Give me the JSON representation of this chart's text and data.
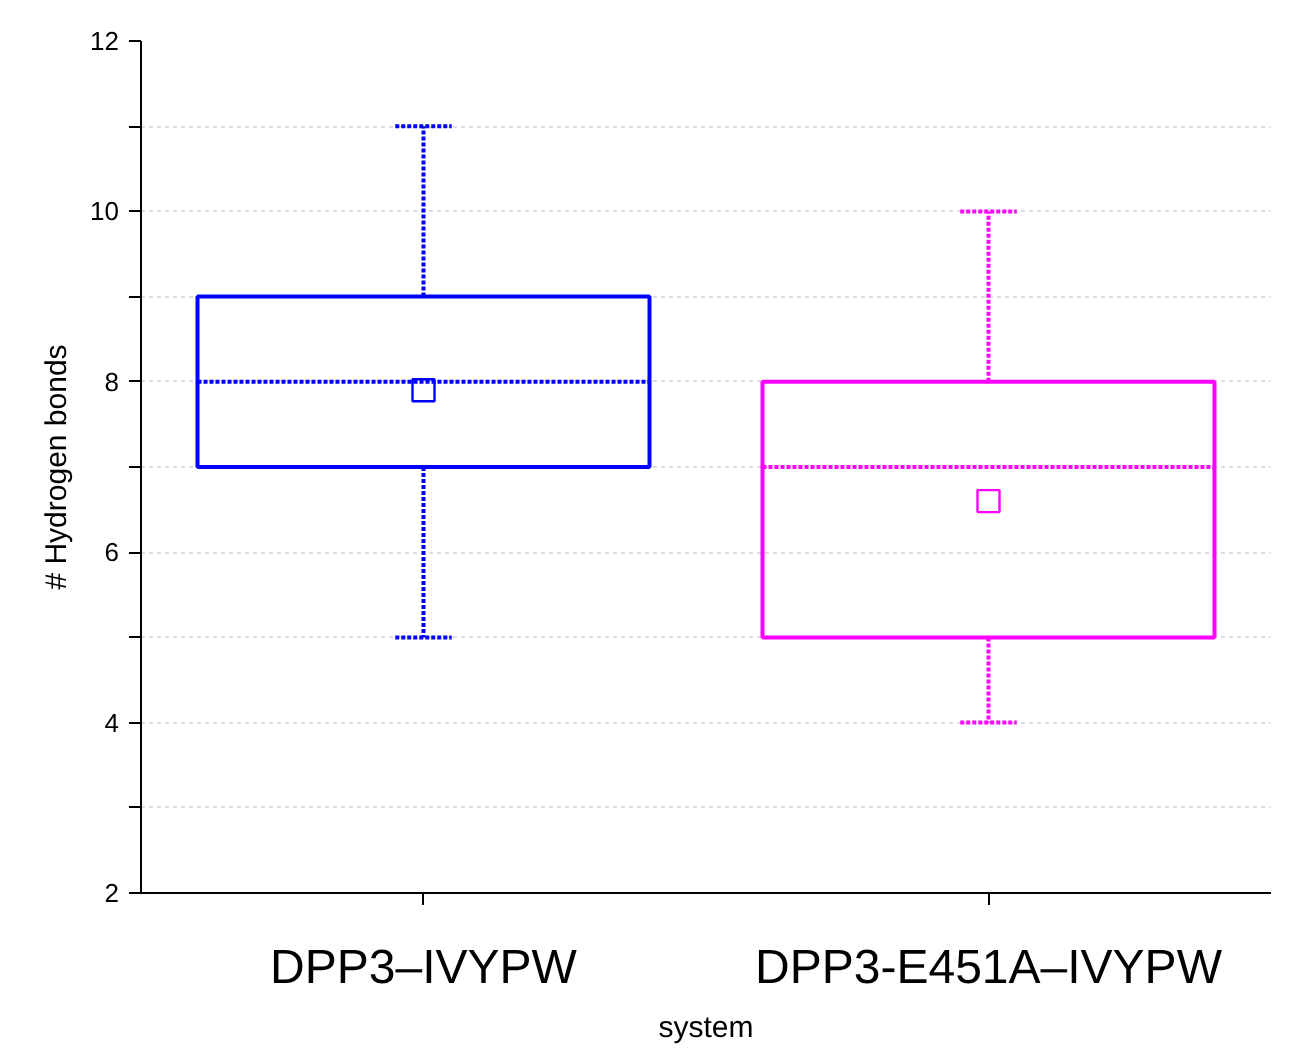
{
  "chart_data": {
    "type": "box",
    "xlabel": "system",
    "ylabel": "# Hydrogen bonds",
    "categories": [
      "DPP3–IVYPW",
      "DPP3-E451A–IVYPW"
    ],
    "colors": [
      "#0000ff",
      "#ff00ff"
    ],
    "boxes": [
      {
        "low": 5,
        "q1": 7,
        "median": 8,
        "q3": 9,
        "high": 11,
        "mean": 7.9
      },
      {
        "low": 4,
        "q1": 5,
        "median": 7,
        "q3": 8,
        "high": 10,
        "mean": 6.6
      }
    ],
    "ylim": [
      2,
      12
    ],
    "yticks": [
      2,
      {
        "value": 3,
        "label": null
      },
      4,
      {
        "value": 5,
        "label": null
      },
      6,
      {
        "value": 7,
        "label": null
      },
      8,
      {
        "value": 9,
        "label": null
      },
      10,
      {
        "value": 11,
        "label": null
      },
      12
    ],
    "grid": "y",
    "marker": "square"
  }
}
